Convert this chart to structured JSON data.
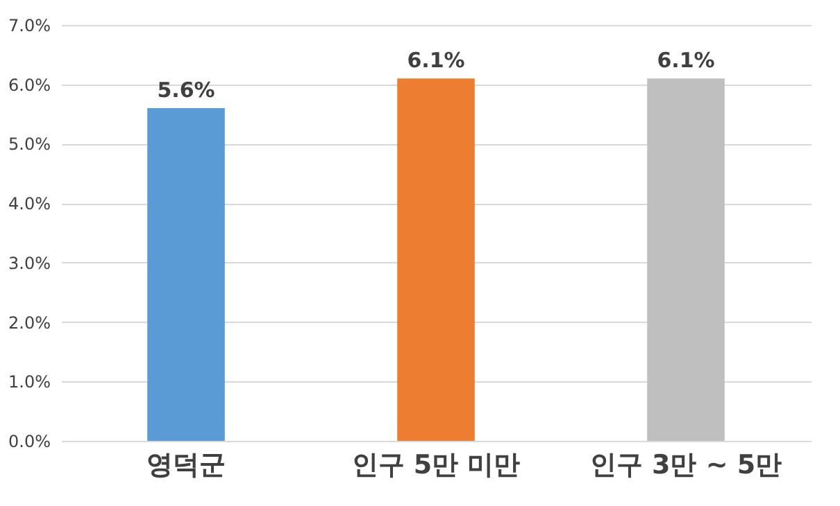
{
  "chart_data": {
    "type": "bar",
    "categories": [
      "영덕군",
      "인구 5만 미만",
      "인구 3만 ~ 5만"
    ],
    "values": [
      5.6,
      6.1,
      6.1
    ],
    "colors": [
      "#5b9bd5",
      "#ed7d31",
      "#bfbfbf"
    ],
    "value_labels": [
      "5.6%",
      "6.1%",
      "6.1%"
    ],
    "ylim": [
      0,
      7
    ],
    "yticks": [
      {
        "value": 0,
        "label": "0.0%"
      },
      {
        "value": 1,
        "label": "1.0%"
      },
      {
        "value": 2,
        "label": "2.0%"
      },
      {
        "value": 3,
        "label": "3.0%"
      },
      {
        "value": 4,
        "label": "4.0%"
      },
      {
        "value": 5,
        "label": "5.0%"
      },
      {
        "value": 6,
        "label": "6.0%"
      },
      {
        "value": 7,
        "label": "7.0%"
      }
    ],
    "grid": "y"
  }
}
